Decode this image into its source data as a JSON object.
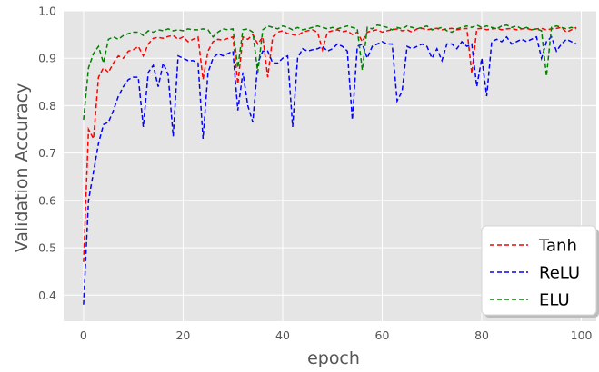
{
  "chart_data": {
    "type": "line",
    "title": "",
    "xlabel": "epoch",
    "ylabel": "Validation Accuracy",
    "xlim": [
      -4,
      103
    ],
    "ylim": [
      0.345,
      1.0
    ],
    "xticks": [
      0,
      20,
      40,
      60,
      80,
      100
    ],
    "yticks": [
      0.4,
      0.5,
      0.6,
      0.7,
      0.8,
      0.9,
      1.0
    ],
    "xtick_labels": [
      "0",
      "20",
      "40",
      "60",
      "80",
      "100"
    ],
    "ytick_labels": [
      "0.4",
      "0.5",
      "0.6",
      "0.7",
      "0.8",
      "0.9",
      "1.0"
    ],
    "grid": true,
    "legend_position": "lower-right",
    "series": [
      {
        "name": "Tanh",
        "color": "#ff0000",
        "x": [
          0,
          1,
          2,
          3,
          4,
          5,
          6,
          7,
          8,
          9,
          10,
          11,
          12,
          13,
          14,
          15,
          16,
          17,
          18,
          19,
          20,
          21,
          22,
          23,
          24,
          25,
          26,
          27,
          28,
          29,
          30,
          31,
          32,
          33,
          34,
          35,
          36,
          37,
          38,
          39,
          40,
          41,
          42,
          43,
          44,
          45,
          46,
          47,
          48,
          49,
          50,
          51,
          52,
          53,
          54,
          55,
          56,
          57,
          58,
          59,
          60,
          61,
          62,
          63,
          64,
          65,
          66,
          67,
          68,
          69,
          70,
          71,
          72,
          73,
          74,
          75,
          76,
          77,
          78,
          79,
          80,
          81,
          82,
          83,
          84,
          85,
          86,
          87,
          88,
          89,
          90,
          91,
          92,
          93,
          94,
          95,
          96,
          97,
          98,
          99
        ],
        "values": [
          0.47,
          0.75,
          0.73,
          0.86,
          0.88,
          0.87,
          0.89,
          0.905,
          0.9,
          0.915,
          0.918,
          0.925,
          0.905,
          0.93,
          0.942,
          0.944,
          0.942,
          0.946,
          0.948,
          0.94,
          0.945,
          0.935,
          0.94,
          0.945,
          0.855,
          0.915,
          0.935,
          0.94,
          0.938,
          0.942,
          0.945,
          0.845,
          0.945,
          0.94,
          0.95,
          0.93,
          0.945,
          0.86,
          0.945,
          0.955,
          0.958,
          0.952,
          0.95,
          0.948,
          0.955,
          0.958,
          0.96,
          0.955,
          0.918,
          0.955,
          0.958,
          0.96,
          0.956,
          0.958,
          0.95,
          0.955,
          0.935,
          0.955,
          0.958,
          0.96,
          0.955,
          0.958,
          0.96,
          0.962,
          0.958,
          0.96,
          0.955,
          0.962,
          0.963,
          0.96,
          0.962,
          0.963,
          0.96,
          0.962,
          0.963,
          0.96,
          0.962,
          0.963,
          0.868,
          0.962,
          0.963,
          0.96,
          0.962,
          0.963,
          0.96,
          0.962,
          0.963,
          0.96,
          0.962,
          0.963,
          0.96,
          0.962,
          0.963,
          0.96,
          0.962,
          0.963,
          0.965,
          0.955,
          0.96,
          0.965
        ]
      },
      {
        "name": "ReLU",
        "color": "#0000ff",
        "x": [
          0,
          1,
          2,
          3,
          4,
          5,
          6,
          7,
          8,
          9,
          10,
          11,
          12,
          13,
          14,
          15,
          16,
          17,
          18,
          19,
          20,
          21,
          22,
          23,
          24,
          25,
          26,
          27,
          28,
          29,
          30,
          31,
          32,
          33,
          34,
          35,
          36,
          37,
          38,
          39,
          40,
          41,
          42,
          43,
          44,
          45,
          46,
          47,
          48,
          49,
          50,
          51,
          52,
          53,
          54,
          55,
          56,
          57,
          58,
          59,
          60,
          61,
          62,
          63,
          64,
          65,
          66,
          67,
          68,
          69,
          70,
          71,
          72,
          73,
          74,
          75,
          76,
          77,
          78,
          79,
          80,
          81,
          82,
          83,
          84,
          85,
          86,
          87,
          88,
          89,
          90,
          91,
          92,
          93,
          94,
          95,
          96,
          97,
          98,
          99
        ],
        "values": [
          0.38,
          0.6,
          0.66,
          0.72,
          0.76,
          0.765,
          0.79,
          0.82,
          0.84,
          0.855,
          0.86,
          0.86,
          0.755,
          0.87,
          0.885,
          0.84,
          0.89,
          0.865,
          0.735,
          0.905,
          0.9,
          0.895,
          0.895,
          0.89,
          0.73,
          0.87,
          0.9,
          0.91,
          0.905,
          0.91,
          0.915,
          0.79,
          0.87,
          0.8,
          0.765,
          0.89,
          0.915,
          0.915,
          0.89,
          0.89,
          0.9,
          0.905,
          0.755,
          0.9,
          0.92,
          0.915,
          0.918,
          0.92,
          0.925,
          0.915,
          0.92,
          0.93,
          0.925,
          0.915,
          0.77,
          0.925,
          0.93,
          0.9,
          0.925,
          0.93,
          0.935,
          0.93,
          0.93,
          0.81,
          0.83,
          0.925,
          0.92,
          0.925,
          0.93,
          0.925,
          0.9,
          0.92,
          0.895,
          0.93,
          0.93,
          0.92,
          0.935,
          0.925,
          0.93,
          0.84,
          0.9,
          0.82,
          0.935,
          0.94,
          0.935,
          0.945,
          0.93,
          0.935,
          0.94,
          0.935,
          0.94,
          0.945,
          0.9,
          0.935,
          0.945,
          0.915,
          0.93,
          0.94,
          0.935,
          0.93
        ]
      },
      {
        "name": "ELU",
        "color": "#008000",
        "x": [
          0,
          1,
          2,
          3,
          4,
          5,
          6,
          7,
          8,
          9,
          10,
          11,
          12,
          13,
          14,
          15,
          16,
          17,
          18,
          19,
          20,
          21,
          22,
          23,
          24,
          25,
          26,
          27,
          28,
          29,
          30,
          31,
          32,
          33,
          34,
          35,
          36,
          37,
          38,
          39,
          40,
          41,
          42,
          43,
          44,
          45,
          46,
          47,
          48,
          49,
          50,
          51,
          52,
          53,
          54,
          55,
          56,
          57,
          58,
          59,
          60,
          61,
          62,
          63,
          64,
          65,
          66,
          67,
          68,
          69,
          70,
          71,
          72,
          73,
          74,
          75,
          76,
          77,
          78,
          79,
          80,
          81,
          82,
          83,
          84,
          85,
          86,
          87,
          88,
          89,
          90,
          91,
          92,
          93,
          94,
          95,
          96,
          97,
          98,
          99
        ],
        "values": [
          0.77,
          0.88,
          0.91,
          0.925,
          0.89,
          0.94,
          0.945,
          0.94,
          0.948,
          0.952,
          0.955,
          0.955,
          0.948,
          0.958,
          0.955,
          0.96,
          0.958,
          0.962,
          0.958,
          0.96,
          0.958,
          0.962,
          0.96,
          0.96,
          0.962,
          0.96,
          0.945,
          0.955,
          0.962,
          0.96,
          0.962,
          0.88,
          0.96,
          0.962,
          0.955,
          0.87,
          0.96,
          0.968,
          0.965,
          0.962,
          0.968,
          0.965,
          0.96,
          0.965,
          0.96,
          0.962,
          0.965,
          0.968,
          0.965,
          0.962,
          0.965,
          0.962,
          0.965,
          0.968,
          0.965,
          0.962,
          0.875,
          0.965,
          0.962,
          0.97,
          0.968,
          0.965,
          0.96,
          0.965,
          0.962,
          0.968,
          0.965,
          0.962,
          0.965,
          0.968,
          0.96,
          0.962,
          0.965,
          0.958,
          0.955,
          0.962,
          0.965,
          0.968,
          0.965,
          0.97,
          0.965,
          0.968,
          0.965,
          0.962,
          0.968,
          0.97,
          0.965,
          0.968,
          0.962,
          0.965,
          0.96,
          0.962,
          0.958,
          0.862,
          0.965,
          0.968,
          0.965,
          0.962,
          0.965,
          0.962
        ]
      }
    ]
  }
}
